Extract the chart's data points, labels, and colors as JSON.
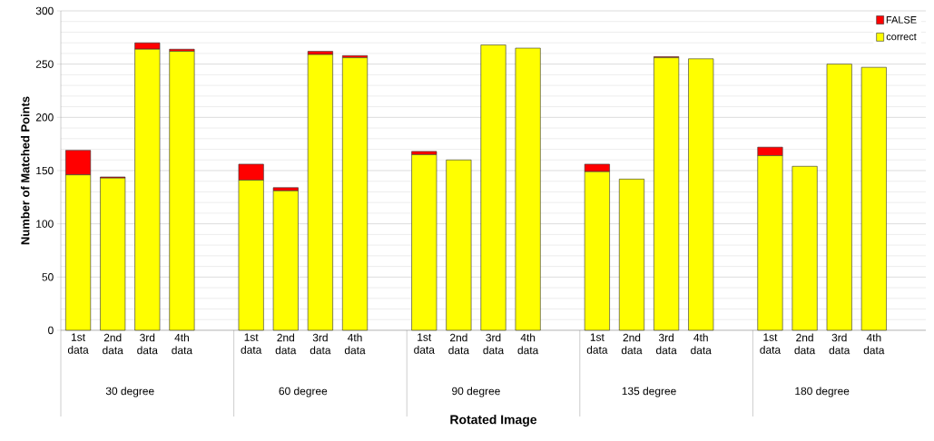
{
  "chart_data": {
    "type": "bar",
    "stacked": true,
    "xlabel": "Rotated Image",
    "ylabel": "Number of Matched Points",
    "categories": [
      "1st data",
      "2nd data",
      "3rd data",
      "4th data",
      "1st data",
      "2nd data",
      "3rd data",
      "4th data",
      "1st data",
      "2nd data",
      "3rd data",
      "4th data",
      "1st data",
      "2nd data",
      "3rd data",
      "4th data",
      "1st data",
      "2nd data",
      "3rd data",
      "4th data"
    ],
    "annotations": [
      "30 degree",
      "60 degree",
      "90 degree",
      "135 degree",
      "180 degree"
    ],
    "series": [
      {
        "name": "correct",
        "color": "#ffff00",
        "values": [
          146,
          143,
          264,
          262,
          141,
          131,
          259,
          256,
          165,
          160,
          268,
          265,
          149,
          142,
          256,
          255,
          164,
          154,
          250,
          247
        ]
      },
      {
        "name": "FALSE",
        "color": "#ff0000",
        "values": [
          23,
          1,
          6,
          2,
          15,
          3,
          3,
          2,
          3,
          0,
          0,
          0,
          7,
          0,
          1,
          0,
          8,
          0,
          0,
          0
        ]
      }
    ],
    "ylim": [
      0,
      300
    ],
    "yticks": [
      0,
      50,
      100,
      150,
      200,
      250,
      300
    ],
    "grid": "y",
    "legend": "top right"
  }
}
